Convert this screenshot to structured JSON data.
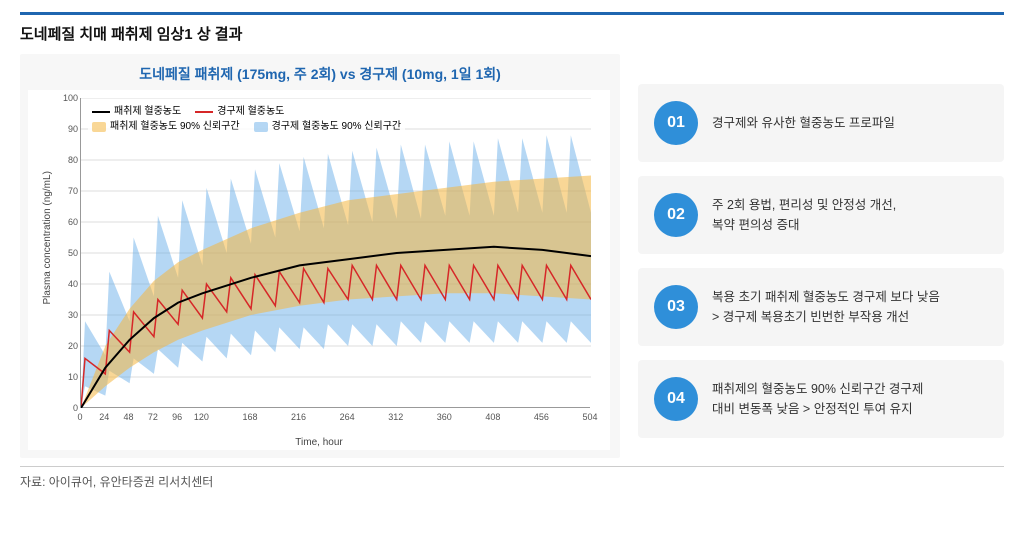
{
  "title": "도네페질 치매 패취제 임상1 상 결과",
  "chart": {
    "type": "line-band",
    "title": "도네페질 패취제 (175mg, 주 2회) vs 경구제 (10mg, 1일 1회)",
    "xlabel": "Time, hour",
    "ylabel": "Plasma concentration (ng/mL)",
    "xlim": [
      0,
      504
    ],
    "ylim": [
      0,
      100
    ],
    "xtick_step": 24,
    "ytick_step": 10,
    "xticks_shown": [
      0,
      24,
      48,
      72,
      96,
      120,
      168,
      216,
      264,
      312,
      360,
      408,
      456,
      504
    ],
    "background_color": "#ffffff",
    "grid_color": "#dcdcdc",
    "legend": {
      "patch_line": {
        "label": "패취제 혈중농도",
        "color": "#000000"
      },
      "oral_line": {
        "label": "경구제 혈중농도",
        "color": "#d62728"
      },
      "patch_band": {
        "label": "패취제 혈중농도 90% 신뢰구간",
        "color": "#f4b740",
        "opacity": 0.55
      },
      "oral_band": {
        "label": "경구제 혈중농도 90% 신뢰구간",
        "color": "#5aa6e6",
        "opacity": 0.45
      }
    },
    "patch_line": {
      "color": "#000000",
      "width": 2,
      "t": [
        0,
        24,
        48,
        72,
        96,
        120,
        168,
        216,
        264,
        312,
        360,
        408,
        456,
        504
      ],
      "y": [
        0,
        13,
        22,
        29,
        34,
        37,
        42,
        46,
        48,
        50,
        51,
        52,
        51,
        49
      ]
    },
    "patch_band": {
      "color": "#f4b740",
      "opacity": 0.55,
      "t": [
        0,
        24,
        48,
        72,
        96,
        120,
        168,
        216,
        264,
        312,
        360,
        408,
        456,
        504
      ],
      "lo": [
        0,
        7,
        13,
        18,
        22,
        25,
        30,
        33,
        35,
        36,
        37,
        37,
        36,
        35
      ],
      "hi": [
        0,
        20,
        32,
        41,
        47,
        51,
        58,
        63,
        67,
        69,
        71,
        73,
        74,
        75
      ]
    },
    "oral_line": {
      "color": "#d62728",
      "width": 1.5,
      "period_h": 24,
      "n_periods": 21,
      "peak": [
        16,
        25,
        31,
        35,
        38,
        40,
        42,
        43,
        44,
        45,
        45,
        46,
        46,
        46,
        46,
        46,
        46,
        46,
        46,
        46,
        46
      ],
      "trough": [
        0,
        11,
        18,
        23,
        27,
        29,
        31,
        32,
        33,
        34,
        34,
        35,
        35,
        35,
        35,
        35,
        35,
        35,
        35,
        35,
        35
      ]
    },
    "oral_band": {
      "color": "#5aa6e6",
      "opacity": 0.45,
      "period_h": 24,
      "n_periods": 21,
      "peak_hi": [
        28,
        44,
        55,
        62,
        67,
        71,
        74,
        77,
        79,
        81,
        82,
        83,
        84,
        85,
        85,
        86,
        86,
        87,
        87,
        88,
        88
      ],
      "peak_lo": [
        7,
        12,
        16,
        19,
        21,
        23,
        24,
        25,
        26,
        26,
        27,
        27,
        27,
        28,
        28,
        28,
        28,
        28,
        28,
        28,
        28
      ],
      "trough_hi": [
        0,
        17,
        28,
        36,
        42,
        46,
        50,
        53,
        55,
        57,
        58,
        59,
        60,
        61,
        61,
        62,
        62,
        62,
        63,
        63,
        63
      ],
      "trough_lo": [
        0,
        4,
        8,
        11,
        13,
        15,
        16,
        17,
        18,
        19,
        19,
        20,
        20,
        20,
        21,
        21,
        21,
        21,
        21,
        21,
        21
      ]
    }
  },
  "bullets": [
    {
      "num": "01",
      "text": "경구제와 유사한 혈중농도 프로파일"
    },
    {
      "num": "02",
      "text": "주 2회 용법, 편리성 및 안정성 개선,\n복약 편의성 증대"
    },
    {
      "num": "03",
      "text": "복용 초기 패취제 혈중농도 경구제 보다 낮음\n> 경구제 복용초기 빈번한 부작용 개선"
    },
    {
      "num": "04",
      "text": "패취제의 혈중농도 90% 신뢰구간 경구제\n대비 변동폭 낮음 > 안정적인 투여 유지"
    }
  ],
  "badge_color": "#2f8fd9",
  "source": "자료: 아이큐어, 유안타증권 리서치센터"
}
